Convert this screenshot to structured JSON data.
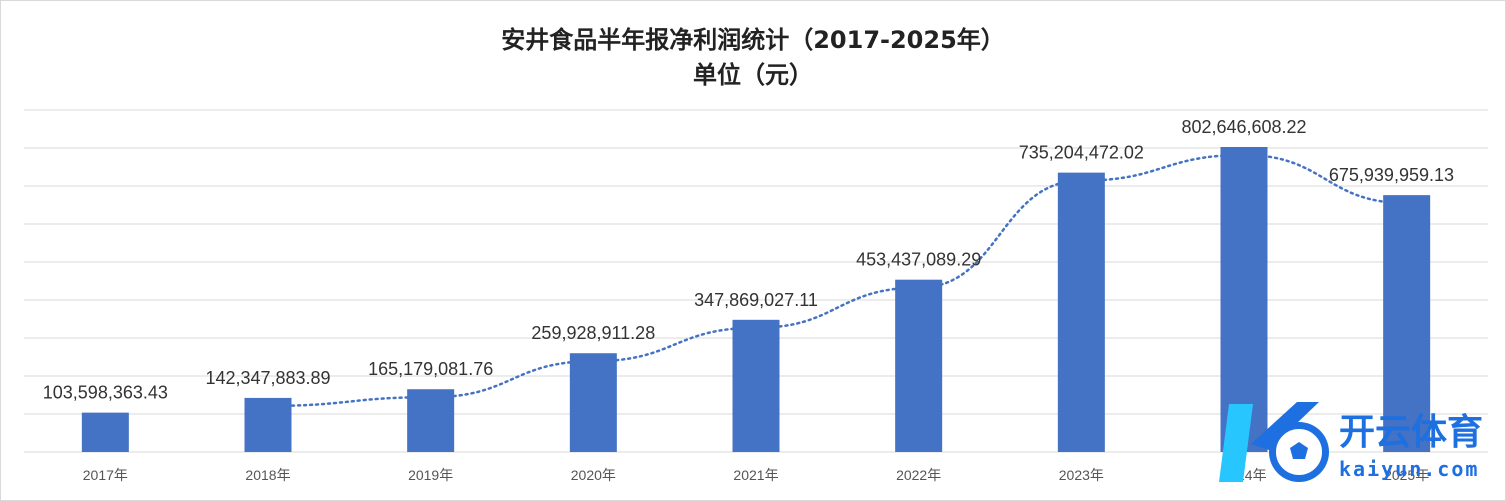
{
  "chart_data": {
    "type": "bar",
    "title": "安井食品半年报净利润统计（2017-2025年）",
    "subtitle": "单位（元）",
    "categories": [
      "2017年",
      "2018年",
      "2019年",
      "2020年",
      "2021年",
      "2022年",
      "2023年",
      "2024年",
      "2025年"
    ],
    "values": [
      103598363.43,
      142347883.89,
      165179081.76,
      259928911.28,
      347869027.11,
      453437089.29,
      735204472.02,
      802646608.22,
      675939959.13
    ],
    "value_labels": [
      "103,598,363.43",
      "142,347,883.89",
      "165,179,081.76",
      "259,928,911.28",
      "347,869,027.11",
      "453,437,089.29",
      "735,204,472.02",
      "802,646,608.22",
      "675,939,959.13"
    ],
    "ylim": [
      0,
      900000000
    ],
    "y_gridline_step": 100000000,
    "y_axis_visible": false,
    "grid": true,
    "trendline": {
      "style": "dotted",
      "from_category": "2018年"
    },
    "colors": {
      "bar": "#4472c4",
      "trendline": "#4472c4",
      "grid": "#d9d9d9"
    }
  },
  "watermark": {
    "brand": "开云体育",
    "domain": "kaiyun.com",
    "colors": {
      "blue": "#1e6fe0",
      "cyan": "#27c6ff"
    }
  }
}
